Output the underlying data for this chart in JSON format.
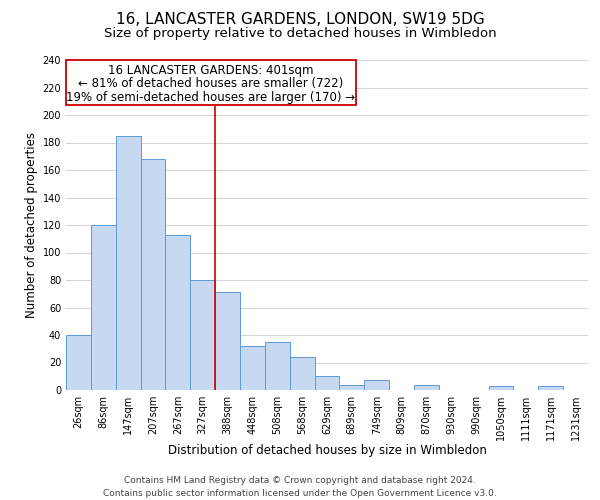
{
  "title": "16, LANCASTER GARDENS, LONDON, SW19 5DG",
  "subtitle": "Size of property relative to detached houses in Wimbledon",
  "xlabel": "Distribution of detached houses by size in Wimbledon",
  "ylabel": "Number of detached properties",
  "bin_labels": [
    "26sqm",
    "86sqm",
    "147sqm",
    "207sqm",
    "267sqm",
    "327sqm",
    "388sqm",
    "448sqm",
    "508sqm",
    "568sqm",
    "629sqm",
    "689sqm",
    "749sqm",
    "809sqm",
    "870sqm",
    "930sqm",
    "990sqm",
    "1050sqm",
    "1111sqm",
    "1171sqm",
    "1231sqm"
  ],
  "bar_heights": [
    40,
    120,
    185,
    168,
    113,
    80,
    71,
    32,
    35,
    24,
    10,
    4,
    7,
    0,
    4,
    0,
    0,
    3,
    0,
    3,
    0
  ],
  "bar_color": "#c6d9f0",
  "bar_edge_color": "#5b9bd5",
  "property_line_bin_index": 6,
  "annotation_title": "16 LANCASTER GARDENS: 401sqm",
  "annotation_line1": "← 81% of detached houses are smaller (722)",
  "annotation_line2": "19% of semi-detached houses are larger (170) →",
  "ylim": [
    0,
    240
  ],
  "yticks": [
    0,
    20,
    40,
    60,
    80,
    100,
    120,
    140,
    160,
    180,
    200,
    220,
    240
  ],
  "footer_line1": "Contains HM Land Registry data © Crown copyright and database right 2024.",
  "footer_line2": "Contains public sector information licensed under the Open Government Licence v3.0.",
  "bg_color": "#ffffff",
  "grid_color": "#cccccc",
  "property_line_color": "#cc0000",
  "annotation_box_edge_color": "#cc0000",
  "title_fontsize": 11,
  "subtitle_fontsize": 9.5,
  "axis_label_fontsize": 8.5,
  "tick_fontsize": 7,
  "annotation_title_fontsize": 8.5,
  "annotation_text_fontsize": 8.5,
  "footer_fontsize": 6.5
}
